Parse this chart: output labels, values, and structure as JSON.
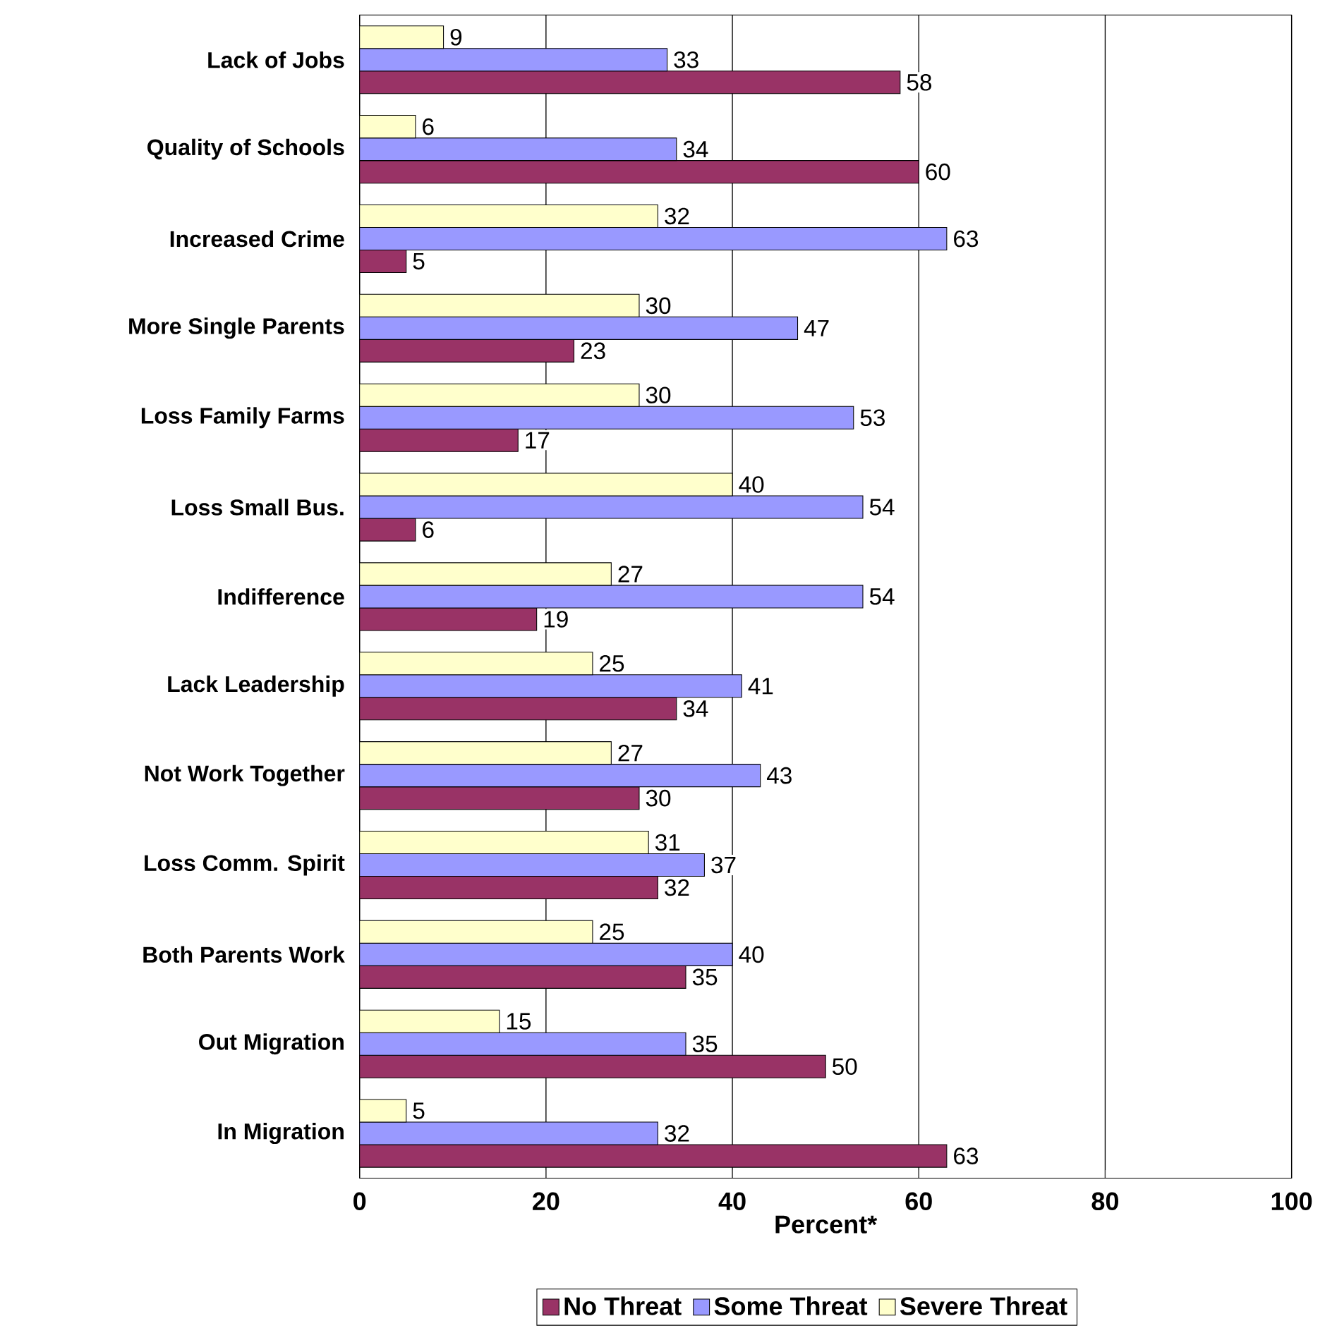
{
  "chart_data": {
    "type": "bar",
    "orientation": "horizontal",
    "xlabel": "Percent*",
    "categories": [
      "Lack of Jobs",
      "Quality of Schools",
      "Increased Crime",
      "More Single Parents",
      "Loss Family Farms",
      "Loss Small Bus.",
      "Indifference",
      "Lack Leadership",
      "Not Work Together",
      "Loss Comm. Spirit",
      "Both Parents Work",
      "Out Migration",
      "In Migration"
    ],
    "series": [
      {
        "name": "No Threat",
        "color": "#993366",
        "values": [
          58,
          60,
          5,
          23,
          17,
          6,
          19,
          34,
          30,
          32,
          35,
          50,
          63
        ]
      },
      {
        "name": "Some Threat",
        "color": "#9999ff",
        "values": [
          33,
          34,
          63,
          47,
          53,
          54,
          54,
          41,
          43,
          37,
          40,
          35,
          32
        ]
      },
      {
        "name": "Severe Threat",
        "color": "#ffffcc",
        "values": [
          9,
          6,
          32,
          30,
          30,
          40,
          27,
          25,
          27,
          31,
          25,
          15,
          5
        ]
      }
    ],
    "xlim": [
      0,
      100
    ],
    "xticks": [
      0,
      20,
      40,
      60,
      80,
      100
    ],
    "grid": "x",
    "legend": "bottom",
    "data_labels": true
  }
}
